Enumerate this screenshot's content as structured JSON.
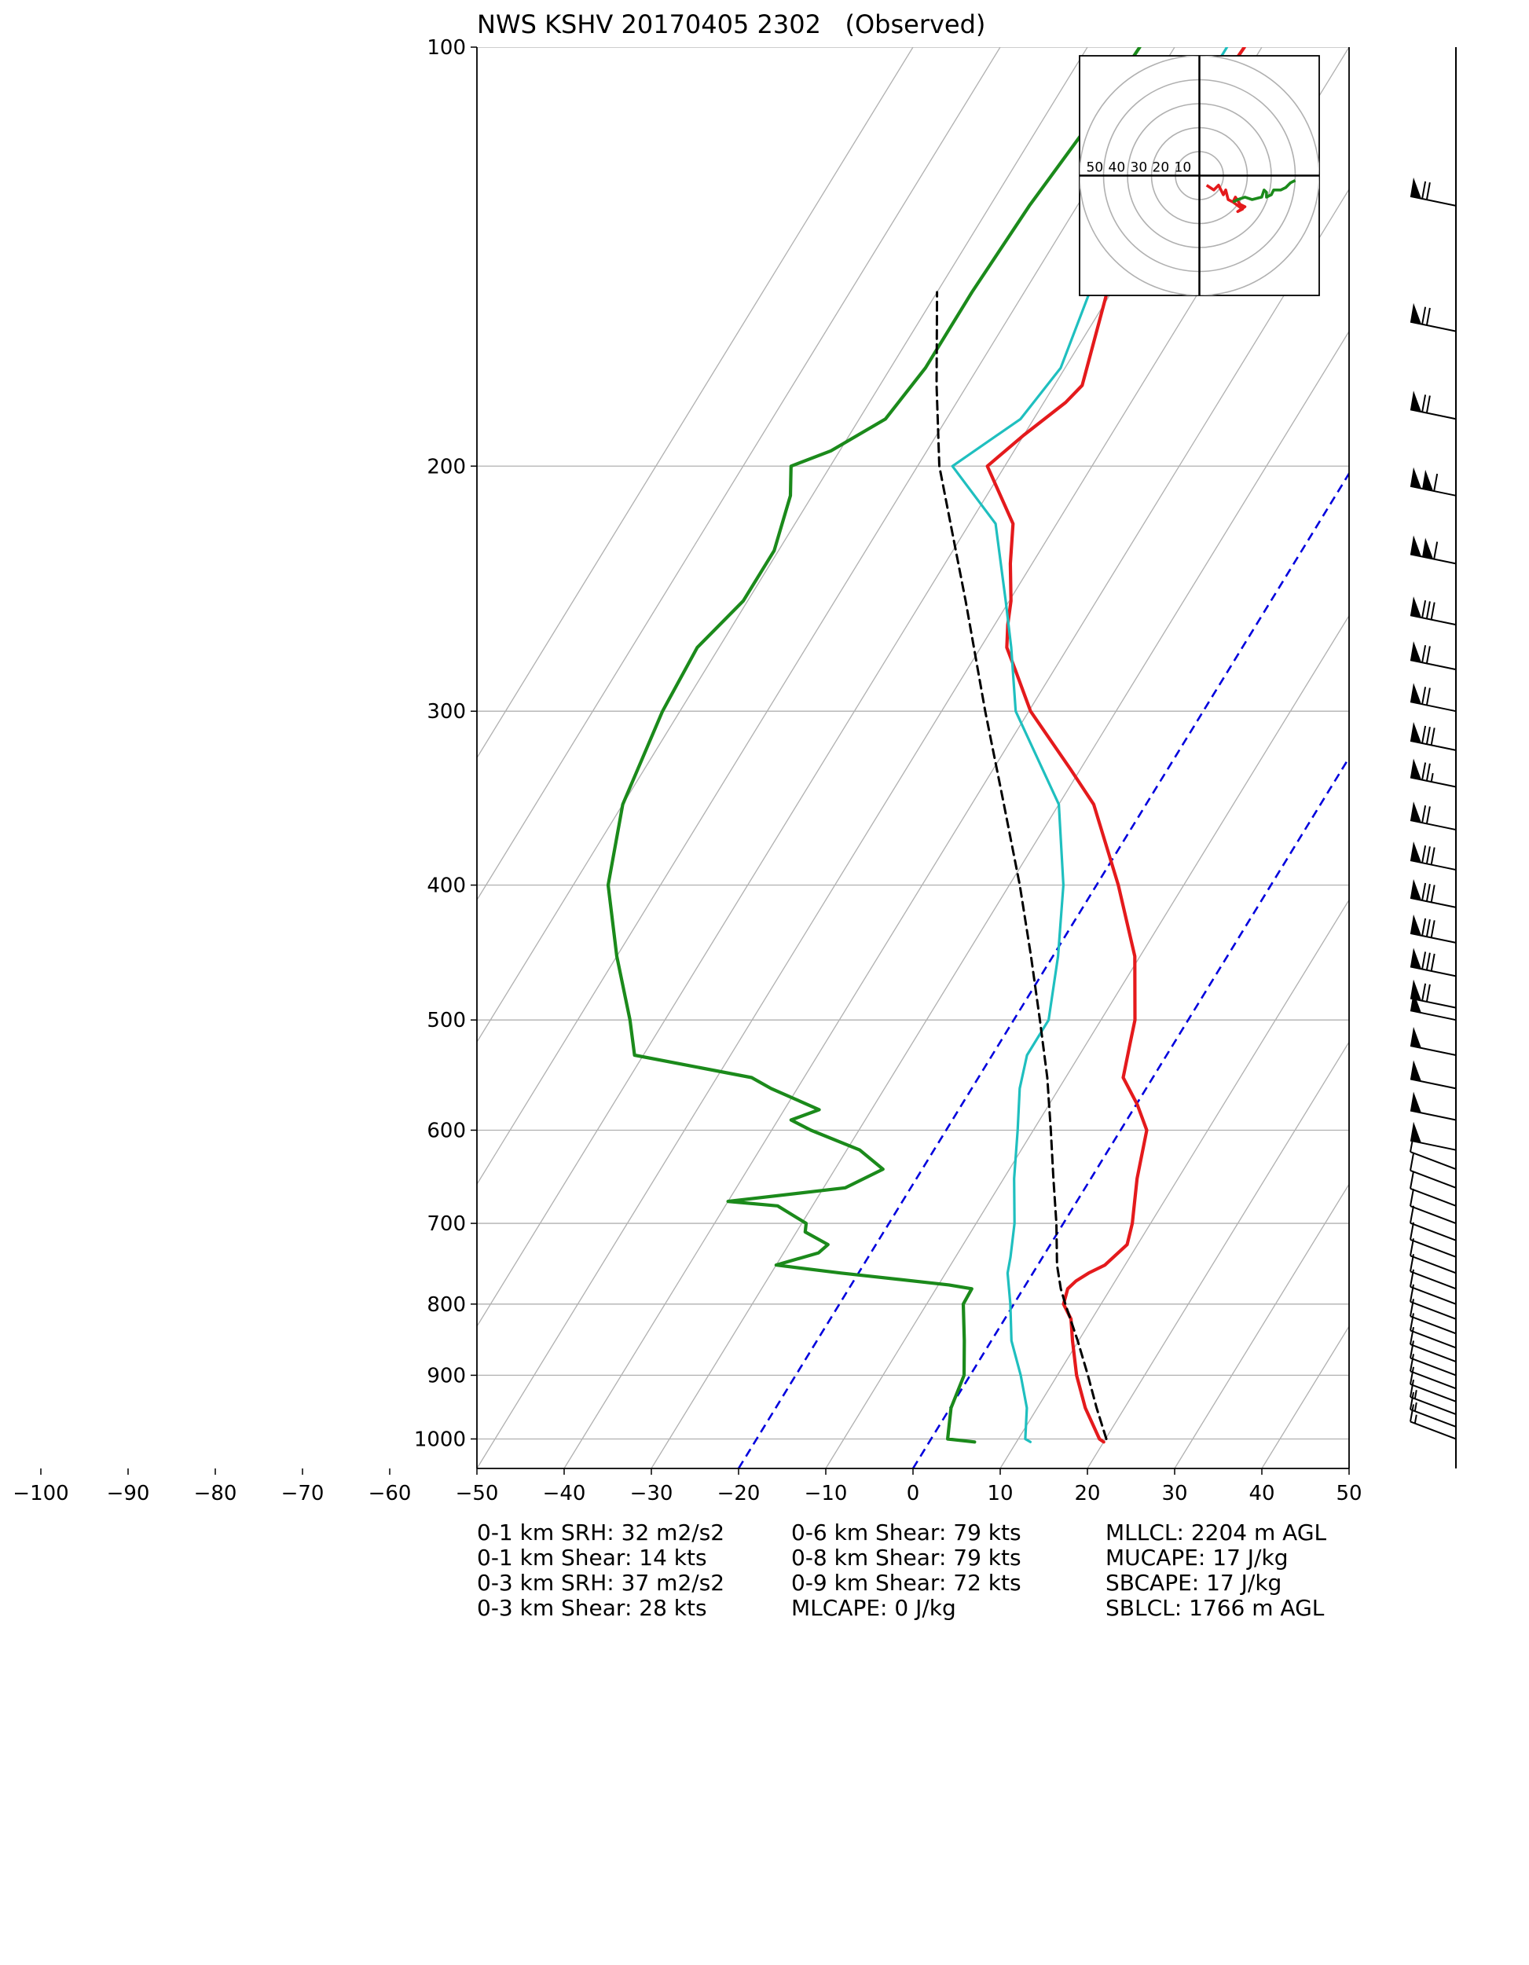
{
  "chart_data": {
    "type": "skew-t",
    "title": "NWS KSHV 20170405 2302   (Observed)",
    "xlim": [
      -50,
      50
    ],
    "ylim": [
      1050,
      100
    ],
    "y_scale": "log",
    "x_ticks": [
      "−100",
      "−90",
      "−80",
      "−70",
      "−60",
      "−50",
      "−40",
      "−30",
      "−20",
      "−10",
      "0",
      "10",
      "20",
      "30",
      "40",
      "50"
    ],
    "x_tick_values": [
      -100,
      -90,
      -80,
      -70,
      -60,
      -50,
      -40,
      -30,
      -20,
      -10,
      0,
      10,
      20,
      30,
      40,
      50
    ],
    "y_ticks": [
      "100",
      "200",
      "300",
      "400",
      "500",
      "600",
      "700",
      "800",
      "900",
      "1000"
    ],
    "y_tick_values": [
      100,
      200,
      300,
      400,
      500,
      600,
      700,
      800,
      900,
      1000
    ],
    "isotherms": [
      -100,
      -90,
      -80,
      -70,
      -60,
      -50,
      -40,
      -30,
      -20,
      -10,
      0,
      10,
      20,
      30,
      40
    ],
    "highlight_isotherms": [
      -20,
      0
    ],
    "colors": {
      "temperature": "#e41a1c",
      "dewpoint": "#1b8a1b",
      "virtual_temp": "#1fbfbf",
      "parcel": "#000000",
      "isotherm_highlight": "#0000dd",
      "grid": "#b0b0b0"
    },
    "series": [
      {
        "key": "temperature",
        "values": [
          [
            1005,
            20
          ],
          [
            1000,
            19.3
          ],
          [
            950,
            15.5
          ],
          [
            900,
            12.2
          ],
          [
            850,
            9.3
          ],
          [
            820,
            7.6
          ],
          [
            800,
            5.7
          ],
          [
            780,
            5.1
          ],
          [
            770,
            5.5
          ],
          [
            760,
            6.4
          ],
          [
            750,
            7.7
          ],
          [
            725,
            8.8
          ],
          [
            700,
            7.9
          ],
          [
            650,
            5.3
          ],
          [
            600,
            3.0
          ],
          [
            575,
            0.1
          ],
          [
            550,
            -3.4
          ],
          [
            520,
            -5.0
          ],
          [
            500,
            -6.1
          ],
          [
            450,
            -10.6
          ],
          [
            400,
            -17.5
          ],
          [
            350,
            -26.0
          ],
          [
            330,
            -31.2
          ],
          [
            300,
            -39.8
          ],
          [
            280,
            -44.5
          ],
          [
            270,
            -47.0
          ],
          [
            260,
            -48.5
          ],
          [
            250,
            -49.8
          ],
          [
            235,
            -52.5
          ],
          [
            220,
            -55.0
          ],
          [
            200,
            -62.0
          ],
          [
            190,
            -60.0
          ],
          [
            180,
            -57.5
          ],
          [
            175,
            -56.8
          ],
          [
            170,
            -57.5
          ],
          [
            150,
            -60.5
          ],
          [
            140,
            -61.5
          ],
          [
            130,
            -62.5
          ],
          [
            120,
            -63.0
          ],
          [
            110,
            -62.5
          ],
          [
            100,
            -62.0
          ]
        ]
      },
      {
        "key": "virtual_temp",
        "values": [
          [
            1005,
            11.6
          ],
          [
            1000,
            10.8
          ],
          [
            950,
            8.8
          ],
          [
            900,
            5.8
          ],
          [
            850,
            2.3
          ],
          [
            800,
            -0.4
          ],
          [
            760,
            -2.9
          ],
          [
            740,
            -3.7
          ],
          [
            700,
            -5.6
          ],
          [
            650,
            -8.8
          ],
          [
            600,
            -11.8
          ],
          [
            560,
            -14.5
          ],
          [
            530,
            -16.0
          ],
          [
            500,
            -16.0
          ],
          [
            450,
            -19.4
          ],
          [
            400,
            -23.8
          ],
          [
            350,
            -30.0
          ],
          [
            300,
            -41.5
          ],
          [
            270,
            -46.5
          ],
          [
            250,
            -50.4
          ],
          [
            220,
            -57.0
          ],
          [
            200,
            -66.0
          ],
          [
            185,
            -61.5
          ],
          [
            170,
            -60.5
          ],
          [
            150,
            -62.5
          ],
          [
            130,
            -64.5
          ],
          [
            110,
            -64.0
          ],
          [
            100,
            -64.0
          ]
        ]
      },
      {
        "key": "dewpoint",
        "values": [
          [
            1005,
            5.2
          ],
          [
            1000,
            1.9
          ],
          [
            950,
            0.1
          ],
          [
            900,
            -0.7
          ],
          [
            850,
            -3.1
          ],
          [
            800,
            -5.8
          ],
          [
            780,
            -5.9
          ],
          [
            775,
            -8.8
          ],
          [
            760,
            -22.0
          ],
          [
            750,
            -30.0
          ],
          [
            735,
            -26.0
          ],
          [
            725,
            -25.5
          ],
          [
            710,
            -29.0
          ],
          [
            700,
            -29.5
          ],
          [
            680,
            -34.0
          ],
          [
            675,
            -40.0
          ],
          [
            660,
            -27.5
          ],
          [
            640,
            -24.5
          ],
          [
            620,
            -28.5
          ],
          [
            600,
            -35.5
          ],
          [
            590,
            -38.5
          ],
          [
            580,
            -36.0
          ],
          [
            560,
            -43.0
          ],
          [
            550,
            -46.0
          ],
          [
            530,
            -61.0
          ],
          [
            500,
            -64.0
          ],
          [
            450,
            -70.0
          ],
          [
            400,
            -76.0
          ],
          [
            350,
            -80.0
          ],
          [
            300,
            -82.0
          ],
          [
            270,
            -82.5
          ],
          [
            250,
            -80.5
          ],
          [
            230,
            -80.5
          ],
          [
            210,
            -82.5
          ],
          [
            200,
            -84.5
          ],
          [
            195,
            -81.0
          ],
          [
            185,
            -77.0
          ],
          [
            170,
            -76.0
          ],
          [
            150,
            -76.0
          ],
          [
            130,
            -75.5
          ],
          [
            115,
            -74.5
          ],
          [
            100,
            -74.0
          ]
        ]
      },
      {
        "key": "parcel",
        "style": "dashed",
        "values": [
          [
            1000,
            20.1
          ],
          [
            950,
            16.8
          ],
          [
            900,
            13.5
          ],
          [
            850,
            9.9
          ],
          [
            800,
            5.9
          ],
          [
            780,
            4.3
          ],
          [
            750,
            2.2
          ],
          [
            700,
            -0.8
          ],
          [
            650,
            -4.3
          ],
          [
            600,
            -8.0
          ],
          [
            550,
            -12.1
          ],
          [
            500,
            -17.0
          ],
          [
            450,
            -22.5
          ],
          [
            400,
            -28.8
          ],
          [
            350,
            -36.3
          ],
          [
            300,
            -45.0
          ],
          [
            250,
            -55.0
          ],
          [
            200,
            -67.5
          ],
          [
            175,
            -73.5
          ],
          [
            150,
            -80.0
          ]
        ]
      }
    ],
    "hodograph": {
      "rings": [
        10,
        20,
        30,
        40,
        50
      ],
      "ring_labels": [
        "50",
        "40",
        "30",
        "20",
        "10"
      ],
      "max_speed": 50,
      "segments": [
        {
          "color_key": "temperature",
          "points": [
            [
              3,
              -4
            ],
            [
              6,
              -6
            ],
            [
              8,
              -4
            ],
            [
              10,
              -8
            ],
            [
              11,
              -6
            ],
            [
              12,
              -10
            ],
            [
              14,
              -11
            ],
            [
              15,
              -9
            ],
            [
              17,
              -12
            ],
            [
              19,
              -13
            ],
            [
              16,
              -15
            ],
            [
              18,
              -14
            ],
            [
              14,
              -11
            ]
          ]
        },
        {
          "color_key": "dewpoint",
          "points": [
            [
              14,
              -11
            ],
            [
              16,
              -10
            ],
            [
              19,
              -9
            ],
            [
              22,
              -10
            ],
            [
              26,
              -9
            ],
            [
              27,
              -6
            ],
            [
              28,
              -7
            ],
            [
              28,
              -9
            ],
            [
              30,
              -8
            ],
            [
              31,
              -6
            ],
            [
              34,
              -6
            ],
            [
              36,
              -5
            ],
            [
              38,
              -3
            ],
            [
              40,
              -2
            ]
          ]
        }
      ]
    },
    "wind_barbs": [
      {
        "p": 1000,
        "full": 1,
        "half": 1,
        "flag": 0
      },
      {
        "p": 980,
        "full": 1,
        "half": 1,
        "flag": 0
      },
      {
        "p": 960,
        "full": 1,
        "half": 1,
        "flag": 0
      },
      {
        "p": 940,
        "full": 1,
        "half": 0,
        "flag": 0
      },
      {
        "p": 920,
        "full": 1,
        "half": 0,
        "flag": 0
      },
      {
        "p": 900,
        "full": 1,
        "half": 0,
        "flag": 0
      },
      {
        "p": 880,
        "full": 1,
        "half": 0,
        "flag": 0
      },
      {
        "p": 860,
        "full": 1,
        "half": 0,
        "flag": 0
      },
      {
        "p": 840,
        "full": 1,
        "half": 0,
        "flag": 0
      },
      {
        "p": 820,
        "full": 1,
        "half": 0,
        "flag": 0
      },
      {
        "p": 800,
        "full": 1,
        "half": 0,
        "flag": 0
      },
      {
        "p": 780,
        "full": 1,
        "half": 0,
        "flag": 0
      },
      {
        "p": 760,
        "full": 1,
        "half": 0,
        "flag": 0
      },
      {
        "p": 740,
        "full": 1,
        "half": 0,
        "flag": 0
      },
      {
        "p": 720,
        "full": 1,
        "half": 0,
        "flag": 0
      },
      {
        "p": 700,
        "full": 1,
        "half": 0,
        "flag": 0
      },
      {
        "p": 680,
        "full": 1,
        "half": 0,
        "flag": 0
      },
      {
        "p": 660,
        "full": 1,
        "half": 0,
        "flag": 0
      },
      {
        "p": 640,
        "full": 1,
        "half": 0,
        "flag": 0
      },
      {
        "p": 620,
        "full": 0,
        "half": 0,
        "flag": 1
      },
      {
        "p": 590,
        "full": 0,
        "half": 0,
        "flag": 1
      },
      {
        "p": 560,
        "full": 0,
        "half": 0,
        "flag": 1
      },
      {
        "p": 530,
        "full": 0,
        "half": 0,
        "flag": 1
      },
      {
        "p": 500,
        "full": 0,
        "half": 0,
        "flag": 1
      },
      {
        "p": 490,
        "full": 2,
        "half": 0,
        "flag": 1
      },
      {
        "p": 465,
        "full": 3,
        "half": 0,
        "flag": 1
      },
      {
        "p": 440,
        "full": 3,
        "half": 0,
        "flag": 1
      },
      {
        "p": 415,
        "full": 3,
        "half": 0,
        "flag": 1
      },
      {
        "p": 390,
        "full": 3,
        "half": 0,
        "flag": 1
      },
      {
        "p": 365,
        "full": 2,
        "half": 0,
        "flag": 1
      },
      {
        "p": 340,
        "full": 2,
        "half": 1,
        "flag": 1
      },
      {
        "p": 320,
        "full": 3,
        "half": 0,
        "flag": 1
      },
      {
        "p": 300,
        "full": 2,
        "half": 0,
        "flag": 1
      },
      {
        "p": 280,
        "full": 2,
        "half": 0,
        "flag": 1
      },
      {
        "p": 260,
        "full": 3,
        "half": 0,
        "flag": 1
      },
      {
        "p": 235,
        "full": 1,
        "half": 0,
        "flag": 2
      },
      {
        "p": 210,
        "full": 1,
        "half": 0,
        "flag": 2
      },
      {
        "p": 185,
        "full": 2,
        "half": 0,
        "flag": 1
      },
      {
        "p": 160,
        "full": 2,
        "half": 0,
        "flag": 1
      },
      {
        "p": 130,
        "full": 2,
        "half": 0,
        "flag": 1
      }
    ]
  },
  "stats": {
    "col1": [
      "0-1 km SRH: 32 m2/s2",
      "0-1 km Shear: 14 kts",
      "0-3 km SRH: 37 m2/s2",
      "0-3 km Shear: 28 kts"
    ],
    "col2": [
      "0-6 km Shear: 79 kts",
      "0-8 km Shear: 79 kts",
      "0-9 km Shear: 72 kts",
      "MLCAPE: 0 J/kg"
    ],
    "col3": [
      "MLLCL: 2204 m AGL",
      "MUCAPE: 17 J/kg",
      "SBCAPE: 17 J/kg",
      "SBLCL: 1766 m AGL"
    ]
  }
}
